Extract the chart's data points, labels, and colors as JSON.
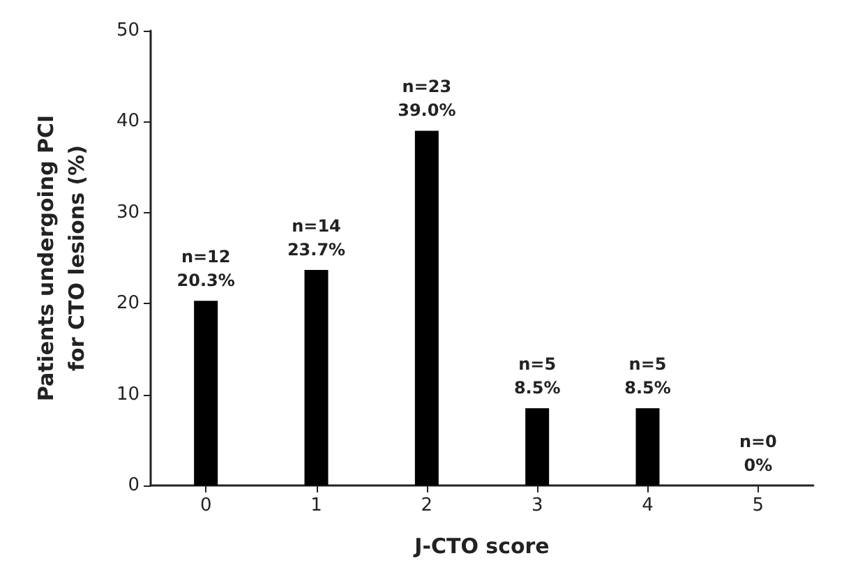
{
  "chart_data": {
    "type": "bar",
    "xlabel": "J-CTO score",
    "ylabel": "Patients undergoing PCI\nfor CTO lesions (%)",
    "categories": [
      "0",
      "1",
      "2",
      "3",
      "4",
      "5"
    ],
    "values": [
      20.3,
      23.7,
      39.0,
      8.5,
      8.5,
      0
    ],
    "value_labels": [
      "n=12\n20.3%",
      "n=14\n23.7%",
      "n=23\n39.0%",
      "n=5\n8.5%",
      "n=5\n8.5%",
      "n=0\n0%"
    ],
    "color": "#000000",
    "ylim": [
      0,
      50
    ],
    "yticks": [
      0,
      10,
      20,
      30,
      40,
      50
    ],
    "grid": false
  }
}
